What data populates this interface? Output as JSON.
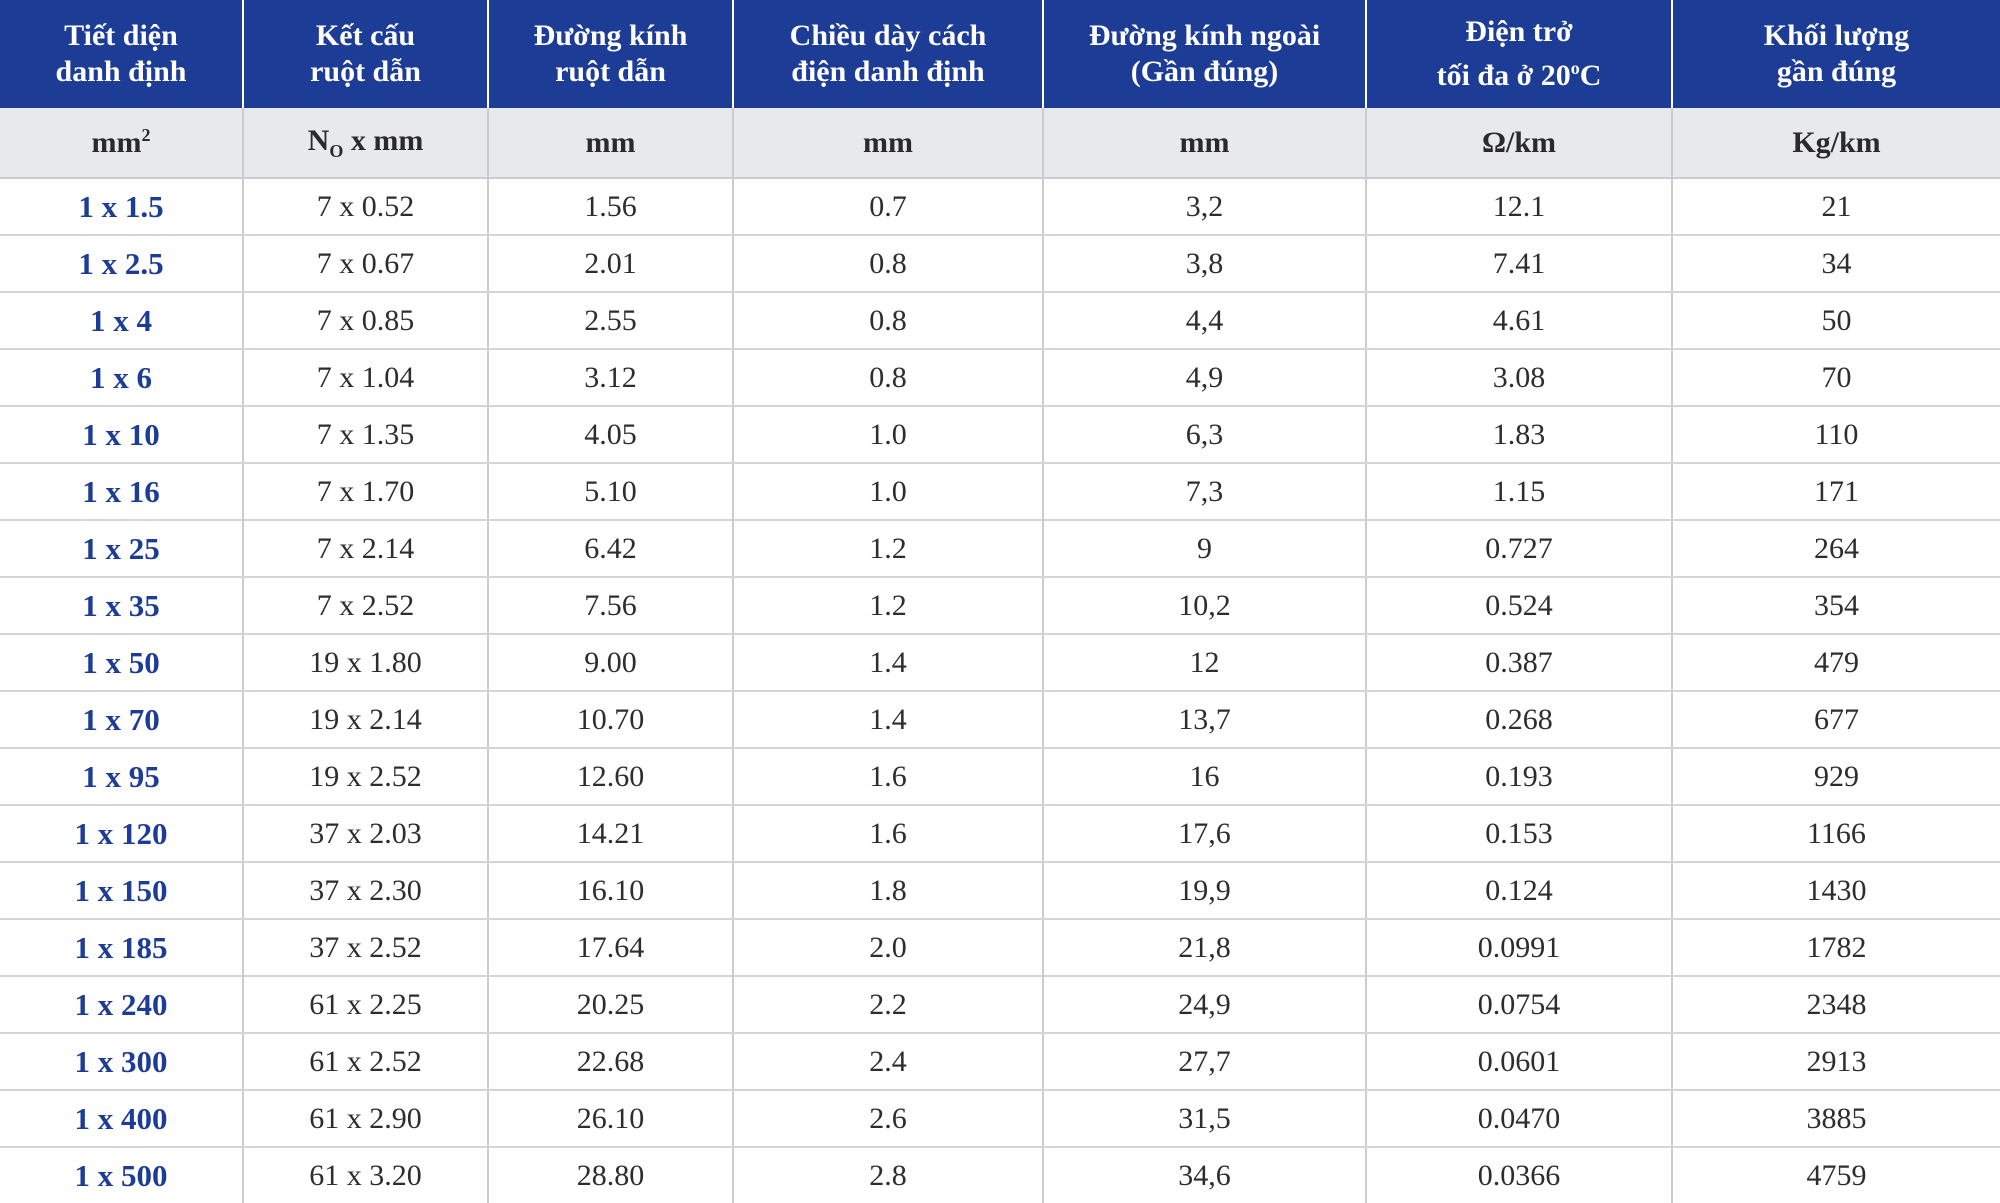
{
  "columns": [
    {
      "line1": "Tiết diện",
      "line2": "danh định"
    },
    {
      "line1": "Kết cấu",
      "line2": "ruột dẫn"
    },
    {
      "line1": "Đường kính",
      "line2": "ruột dẫn"
    },
    {
      "line1": "Chiều dày cách",
      "line2": "điện danh định"
    },
    {
      "line1": "Đường kính ngoài",
      "line2": "(Gần đúng)"
    },
    {
      "line1": "Điện trở",
      "line2_pre": "tối đa ở 20",
      "line2_sup": "o",
      "line2_post": "C"
    },
    {
      "line1": "Khối lượng",
      "line2": "gần đúng"
    }
  ],
  "units": {
    "size_base": "mm",
    "size_sup": "2",
    "structure_pre": "N",
    "structure_sub": "O",
    "structure_post": " x mm",
    "conductor_dia": "mm",
    "insulation": "mm",
    "outer_dia": "mm",
    "resistance": "Ω/km",
    "weight": "Kg/km"
  },
  "rows": [
    [
      "1 x 1.5",
      "7 x  0.52",
      "1.56",
      "0.7",
      "3,2",
      "12.1",
      "21"
    ],
    [
      "1 x 2.5",
      "7 x  0.67",
      "2.01",
      "0.8",
      "3,8",
      "7.41",
      "34"
    ],
    [
      "1 x 4",
      "7 x  0.85",
      "2.55",
      "0.8",
      "4,4",
      "4.61",
      "50"
    ],
    [
      "1 x 6",
      "7 x 1.04",
      "3.12",
      "0.8",
      "4,9",
      "3.08",
      "70"
    ],
    [
      "1 x 10",
      "7 x 1.35",
      "4.05",
      "1.0",
      "6,3",
      "1.83",
      "110"
    ],
    [
      "1 x 16",
      "7 x 1.70",
      "5.10",
      "1.0",
      "7,3",
      "1.15",
      "171"
    ],
    [
      "1 x 25",
      "7 x 2.14",
      "6.42",
      "1.2",
      "9",
      "0.727",
      "264"
    ],
    [
      "1 x 35",
      "7 x 2.52",
      "7.56",
      "1.2",
      "10,2",
      "0.524",
      "354"
    ],
    [
      "1 x 50",
      "19 x 1.80",
      "9.00",
      "1.4",
      "12",
      "0.387",
      "479"
    ],
    [
      "1 x 70",
      "19 x 2.14",
      "10.70",
      "1.4",
      "13,7",
      "0.268",
      "677"
    ],
    [
      "1 x 95",
      "19 x 2.52",
      "12.60",
      "1.6",
      "16",
      "0.193",
      "929"
    ],
    [
      "1 x 120",
      "37 x 2.03",
      "14.21",
      "1.6",
      "17,6",
      "0.153",
      "1166"
    ],
    [
      "1 x 150",
      "37 x 2.30",
      "16.10",
      "1.8",
      "19,9",
      "0.124",
      "1430"
    ],
    [
      "1 x 185",
      "37 x 2.52",
      "17.64",
      "2.0",
      "21,8",
      "0.0991",
      "1782"
    ],
    [
      "1 x 240",
      "61 x 2.25",
      "20.25",
      "2.2",
      "24,9",
      "0.0754",
      "2348"
    ],
    [
      "1 x 300",
      "61 x 2.52",
      "22.68",
      "2.4",
      "27,7",
      "0.0601",
      "2913"
    ],
    [
      "1 x 400",
      "61 x 2.90",
      "26.10",
      "2.6",
      "31,5",
      "0.0470",
      "3885"
    ],
    [
      "1 x 500",
      "61 x 3.20",
      "28.80",
      "2.8",
      "34,6",
      "0.0366",
      "4759"
    ]
  ],
  "colors": {
    "header_bg": "#1d3c96",
    "unit_bg": "#e8e9ec",
    "size_text": "#1d3c96"
  }
}
